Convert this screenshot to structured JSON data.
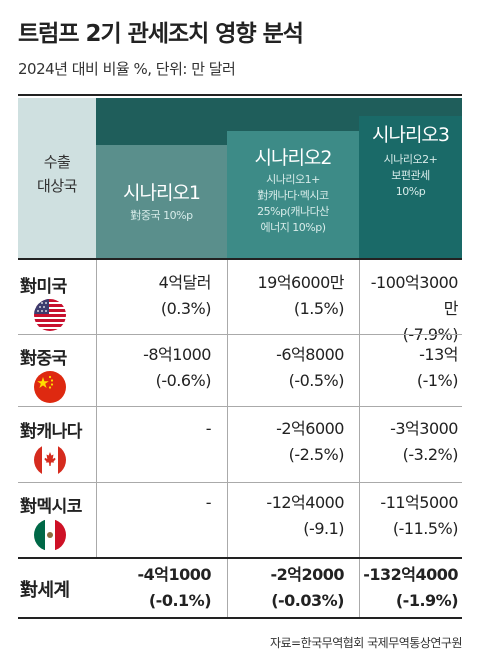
{
  "header": {
    "title": "트럼프 2기 관세조치 영향 분석",
    "subtitle": "2024년 대비 비율 %, 단위: 만 달러"
  },
  "table": {
    "row_header_label_1": "수출",
    "row_header_label_2": "대상국",
    "scenarios": [
      {
        "name": "시나리오1",
        "desc": [
          "對중국 10%p"
        ]
      },
      {
        "name": "시나리오2",
        "desc": [
          "시나리오1+",
          "對캐나다·멕시코",
          "25%p(캐나다산",
          "에너지 10%p)"
        ]
      },
      {
        "name": "시나리오3",
        "desc": [
          "시나리오2+",
          "보편관세",
          "10%p"
        ]
      }
    ],
    "rows": [
      {
        "label": "對미국",
        "flag": "us-flag-icon",
        "values": [
          [
            "4억달러",
            "(0.3%)"
          ],
          [
            "19억6000만",
            "(1.5%)"
          ],
          [
            "-100억3000만",
            "(-7.9%)"
          ]
        ]
      },
      {
        "label": "對중국",
        "flag": "china-flag-icon",
        "values": [
          [
            "-8억1000",
            "(-0.6%)"
          ],
          [
            "-6억8000",
            "(-0.5%)"
          ],
          [
            "-13억",
            "(-1%)"
          ]
        ]
      },
      {
        "label": "對캐나다",
        "flag": "canada-flag-icon",
        "values": [
          [
            "-",
            ""
          ],
          [
            "-2억6000",
            "(-2.5%)"
          ],
          [
            "-3억3000",
            "(-3.2%)"
          ]
        ]
      },
      {
        "label": "對멕시코",
        "flag": "mexico-flag-icon",
        "values": [
          [
            "-",
            ""
          ],
          [
            "-12억4000",
            "(-9.1)"
          ],
          [
            "-11억5000",
            "(-11.5%)"
          ]
        ]
      },
      {
        "label": "對세계",
        "flag": "",
        "values": [
          [
            "-4억1000",
            "(-0.1%)"
          ],
          [
            "-2억2000",
            "(-0.03%)"
          ],
          [
            "-132억4000",
            "(-1.9%)"
          ]
        ]
      }
    ]
  },
  "source": "자료=한국무역협회 국제무역통상연구원",
  "colors": {
    "header_dark": "#1f5e5b",
    "scenario1": "#5a8f8c",
    "scenario2": "#3d8b87",
    "scenario3": "#1a6a68",
    "label_bg": "#cfe0e0"
  },
  "chart_data": {
    "type": "table",
    "title": "트럼프 2기 관세조치 영향 분석",
    "subtitle": "2024년 대비 비율 %, 단위: 만 달러",
    "columns": [
      "시나리오1",
      "시나리오2",
      "시나리오3"
    ],
    "row_labels": [
      "對미국",
      "對중국",
      "對캐나다",
      "對멕시코",
      "對세계"
    ],
    "values": [
      [
        "4억달러",
        "19억6000만",
        "-100억3000만"
      ],
      [
        "-8억1000",
        "-6억8000",
        "-13억"
      ],
      [
        "-",
        "-2억6000",
        "-3억3000"
      ],
      [
        "-",
        "-12억4000",
        "-11억5000"
      ],
      [
        "-4억1000",
        "-2억2000",
        "-132억4000"
      ]
    ],
    "percent": [
      [
        "0.3%",
        "1.5%",
        "-7.9%"
      ],
      [
        "-0.6%",
        "-0.5%",
        "-1%"
      ],
      [
        "",
        "-2.5%",
        "-3.2%"
      ],
      [
        "",
        "-9.1",
        "-11.5%"
      ],
      [
        "-0.1%",
        "-0.03%",
        "-1.9%"
      ]
    ]
  }
}
